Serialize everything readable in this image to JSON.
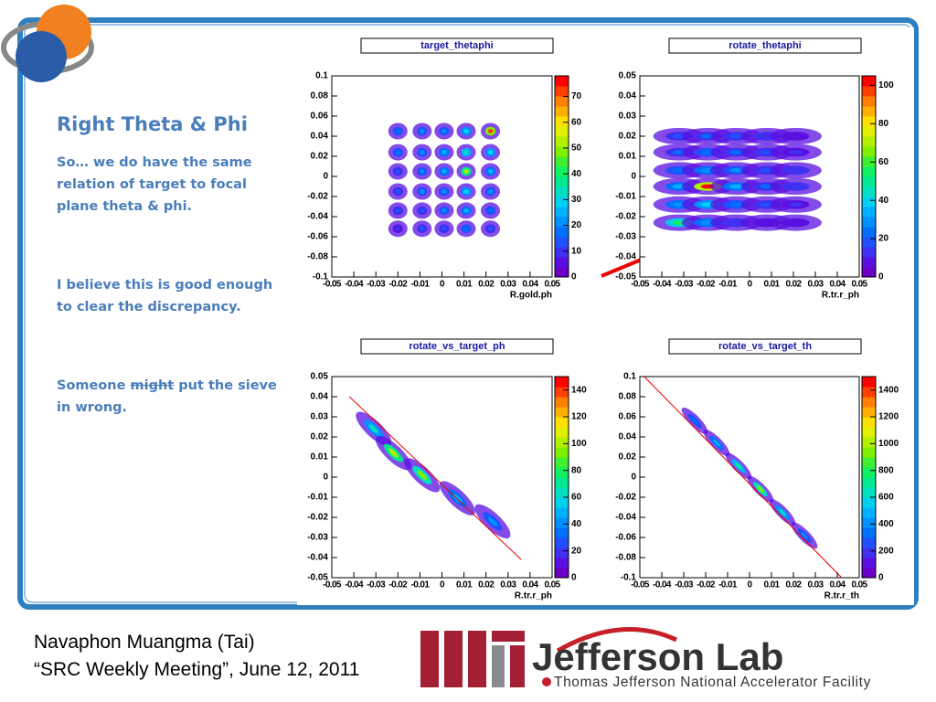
{
  "slide": {
    "title": "Right Theta & Phi",
    "paragraph_1": "So… we do have the same relation of target to focal plane theta & phi.",
    "paragraph_2": "I believe this is good enough to clear the discrepancy.",
    "paragraph_3": {
      "before": "Someone ",
      "struck": "might",
      "after": " put the sieve in wrong."
    },
    "footer_1": "Navaphon Muangma (Tai)",
    "footer_2": "“SRC Weekly Meeting”, June 12, 2011",
    "logo_name": "Jefferson Lab",
    "logo_subtitle": "Thomas Jefferson National Accelerator Facility"
  },
  "chart_data": [
    {
      "type": "heatmap",
      "title": "target_thetaphi",
      "x_label": "R.gold.ph",
      "palette": [
        "#6a00c8",
        "#5a10e0",
        "#4030f0",
        "#2050ff",
        "#0070ff",
        "#0090ff",
        "#00b0ff",
        "#00d0f0",
        "#00e0c0",
        "#00e890",
        "#10f060",
        "#40f030",
        "#80f000",
        "#b0f000",
        "#e0f000",
        "#ffe000",
        "#ffb000",
        "#ff8000",
        "#ff4000",
        "#ff0000"
      ],
      "xlim": [
        -0.05,
        0.05
      ],
      "xticks": [
        -0.05,
        -0.04,
        -0.03,
        -0.02,
        -0.01,
        0,
        0.01,
        0.02,
        0.03,
        0.04,
        0.05
      ],
      "ylim": [
        -0.1,
        0.1
      ],
      "yticks": [
        -0.1,
        -0.08,
        -0.06,
        -0.04,
        -0.02,
        0,
        0.02,
        0.04,
        0.06,
        0.08,
        0.1
      ],
      "zlim": [
        0,
        78
      ],
      "zticks": [
        0,
        10,
        20,
        30,
        40,
        50,
        60,
        70
      ],
      "x": [
        -0.02,
        -0.009,
        0.001,
        0.011,
        0.022,
        -0.02,
        -0.009,
        0.001,
        0.011,
        0.022,
        -0.02,
        -0.009,
        0.001,
        0.011,
        0.022,
        -0.02,
        -0.009,
        0.001,
        0.011,
        0.022,
        -0.02,
        -0.009,
        0.001,
        0.011,
        0.022,
        -0.02,
        -0.009,
        0.001,
        0.011,
        0.022
      ],
      "y": [
        0.045,
        0.045,
        0.045,
        0.045,
        0.045,
        0.024,
        0.024,
        0.024,
        0.024,
        0.024,
        0.005,
        0.005,
        0.005,
        0.005,
        0.005,
        -0.015,
        -0.015,
        -0.015,
        -0.015,
        -0.015,
        -0.034,
        -0.034,
        -0.034,
        -0.034,
        -0.034,
        -0.052,
        -0.052,
        -0.052,
        -0.052,
        -0.052
      ],
      "values": [
        18,
        20,
        22,
        30,
        72,
        18,
        22,
        25,
        35,
        30,
        15,
        20,
        25,
        52,
        25,
        15,
        20,
        22,
        30,
        22,
        12,
        15,
        20,
        25,
        18,
        10,
        12,
        15,
        18,
        15
      ]
    },
    {
      "type": "heatmap",
      "title": "rotate_thetaphi",
      "x_label": "R.tr.r_ph",
      "palette": [
        "#6a00c8",
        "#5a10e0",
        "#4030f0",
        "#2050ff",
        "#0070ff",
        "#0090ff",
        "#00b0ff",
        "#00d0f0",
        "#00e0c0",
        "#00e890",
        "#10f060",
        "#40f030",
        "#80f000",
        "#b0f000",
        "#e0f000",
        "#ffe000",
        "#ffb000",
        "#ff8000",
        "#ff4000",
        "#ff0000"
      ],
      "xlim": [
        -0.05,
        0.05
      ],
      "xticks": [
        -0.05,
        -0.04,
        -0.03,
        -0.02,
        -0.01,
        0,
        0.01,
        0.02,
        0.03,
        0.04,
        0.05
      ],
      "ylim": [
        -0.05,
        0.05
      ],
      "yticks": [
        -0.05,
        -0.04,
        -0.03,
        -0.02,
        -0.01,
        0,
        0.01,
        0.02,
        0.03,
        0.04,
        0.05
      ],
      "zlim": [
        0,
        105
      ],
      "zticks": [
        0,
        20,
        40,
        60,
        80,
        100
      ],
      "x": [
        -0.032,
        -0.019,
        -0.006,
        0.008,
        0.021,
        -0.032,
        -0.019,
        -0.006,
        0.008,
        0.021,
        -0.032,
        -0.019,
        -0.006,
        0.008,
        0.021,
        -0.032,
        -0.019,
        -0.006,
        0.008,
        0.021,
        -0.032,
        -0.019,
        -0.006,
        0.008,
        0.021,
        -0.032,
        -0.019,
        -0.006,
        0.008,
        0.021
      ],
      "y": [
        0.02,
        0.02,
        0.02,
        0.02,
        0.02,
        0.012,
        0.012,
        0.012,
        0.012,
        0.012,
        0.003,
        0.003,
        0.003,
        0.003,
        0.003,
        -0.005,
        -0.005,
        -0.005,
        -0.005,
        -0.005,
        -0.014,
        -0.014,
        -0.014,
        -0.014,
        -0.014,
        -0.023,
        -0.023,
        -0.023,
        -0.023,
        -0.023
      ],
      "values": [
        20,
        22,
        20,
        15,
        10,
        22,
        25,
        22,
        18,
        12,
        25,
        30,
        28,
        20,
        15,
        35,
        100,
        35,
        22,
        15,
        30,
        40,
        25,
        18,
        12,
        55,
        30,
        15,
        10,
        8
      ]
    },
    {
      "type": "heatmap",
      "title": "rotate_vs_target_ph",
      "x_label": "R.tr.r_ph",
      "palette": [
        "#6a00c8",
        "#5a10e0",
        "#4030f0",
        "#2050ff",
        "#0070ff",
        "#0090ff",
        "#00b0ff",
        "#00d0f0",
        "#00e0c0",
        "#00e890",
        "#10f060",
        "#40f030",
        "#80f000",
        "#b0f000",
        "#e0f000",
        "#ffe000",
        "#ffb000",
        "#ff8000",
        "#ff4000",
        "#ff0000"
      ],
      "xlim": [
        -0.05,
        0.05
      ],
      "xticks": [
        -0.05,
        -0.04,
        -0.03,
        -0.02,
        -0.01,
        0,
        0.01,
        0.02,
        0.03,
        0.04,
        0.05
      ],
      "ylim": [
        -0.05,
        0.05
      ],
      "yticks": [
        -0.05,
        -0.04,
        -0.03,
        -0.02,
        -0.01,
        0,
        0.01,
        0.02,
        0.03,
        0.04,
        0.05
      ],
      "zlim": [
        0,
        150
      ],
      "zticks": [
        0,
        20,
        40,
        60,
        80,
        100,
        120,
        140
      ],
      "x": [
        -0.031,
        -0.022,
        -0.009,
        0.007,
        0.023
      ],
      "y": [
        0.024,
        0.012,
        0.001,
        -0.0105,
        -0.022
      ],
      "values": [
        60,
        100,
        90,
        50,
        40
      ],
      "fit": {
        "x": [
          -0.042,
          0.036
        ],
        "y": [
          0.04,
          -0.041
        ]
      }
    },
    {
      "type": "heatmap",
      "title": "rotate_vs_target_th",
      "x_label": "R.tr.r_th",
      "palette": [
        "#6a00c8",
        "#5a10e0",
        "#4030f0",
        "#2050ff",
        "#0070ff",
        "#0090ff",
        "#00b0ff",
        "#00d0f0",
        "#00e0c0",
        "#00e890",
        "#10f060",
        "#40f030",
        "#80f000",
        "#b0f000",
        "#e0f000",
        "#ffe000",
        "#ffb000",
        "#ff8000",
        "#ff4000",
        "#ff0000"
      ],
      "xlim": [
        -0.05,
        0.05
      ],
      "xticks": [
        -0.05,
        -0.04,
        -0.03,
        -0.02,
        -0.01,
        0,
        0.01,
        0.02,
        0.03,
        0.04,
        0.05
      ],
      "ylim": [
        -0.1,
        0.1
      ],
      "yticks": [
        -0.1,
        -0.08,
        -0.06,
        -0.04,
        -0.02,
        0,
        0.02,
        0.04,
        0.06,
        0.08,
        0.1
      ],
      "zlim": [
        0,
        1500
      ],
      "zticks": [
        0,
        200,
        400,
        600,
        800,
        1000,
        1200,
        1400
      ],
      "x": [
        -0.025,
        -0.015,
        -0.005,
        0.005,
        0.015,
        0.025
      ],
      "y": [
        0.056,
        0.034,
        0.011,
        -0.012,
        -0.035,
        -0.058
      ],
      "values": [
        350,
        500,
        700,
        900,
        600,
        400
      ],
      "fit": {
        "x": [
          -0.048,
          0.042
        ],
        "y": [
          0.1,
          -0.1
        ]
      }
    }
  ]
}
